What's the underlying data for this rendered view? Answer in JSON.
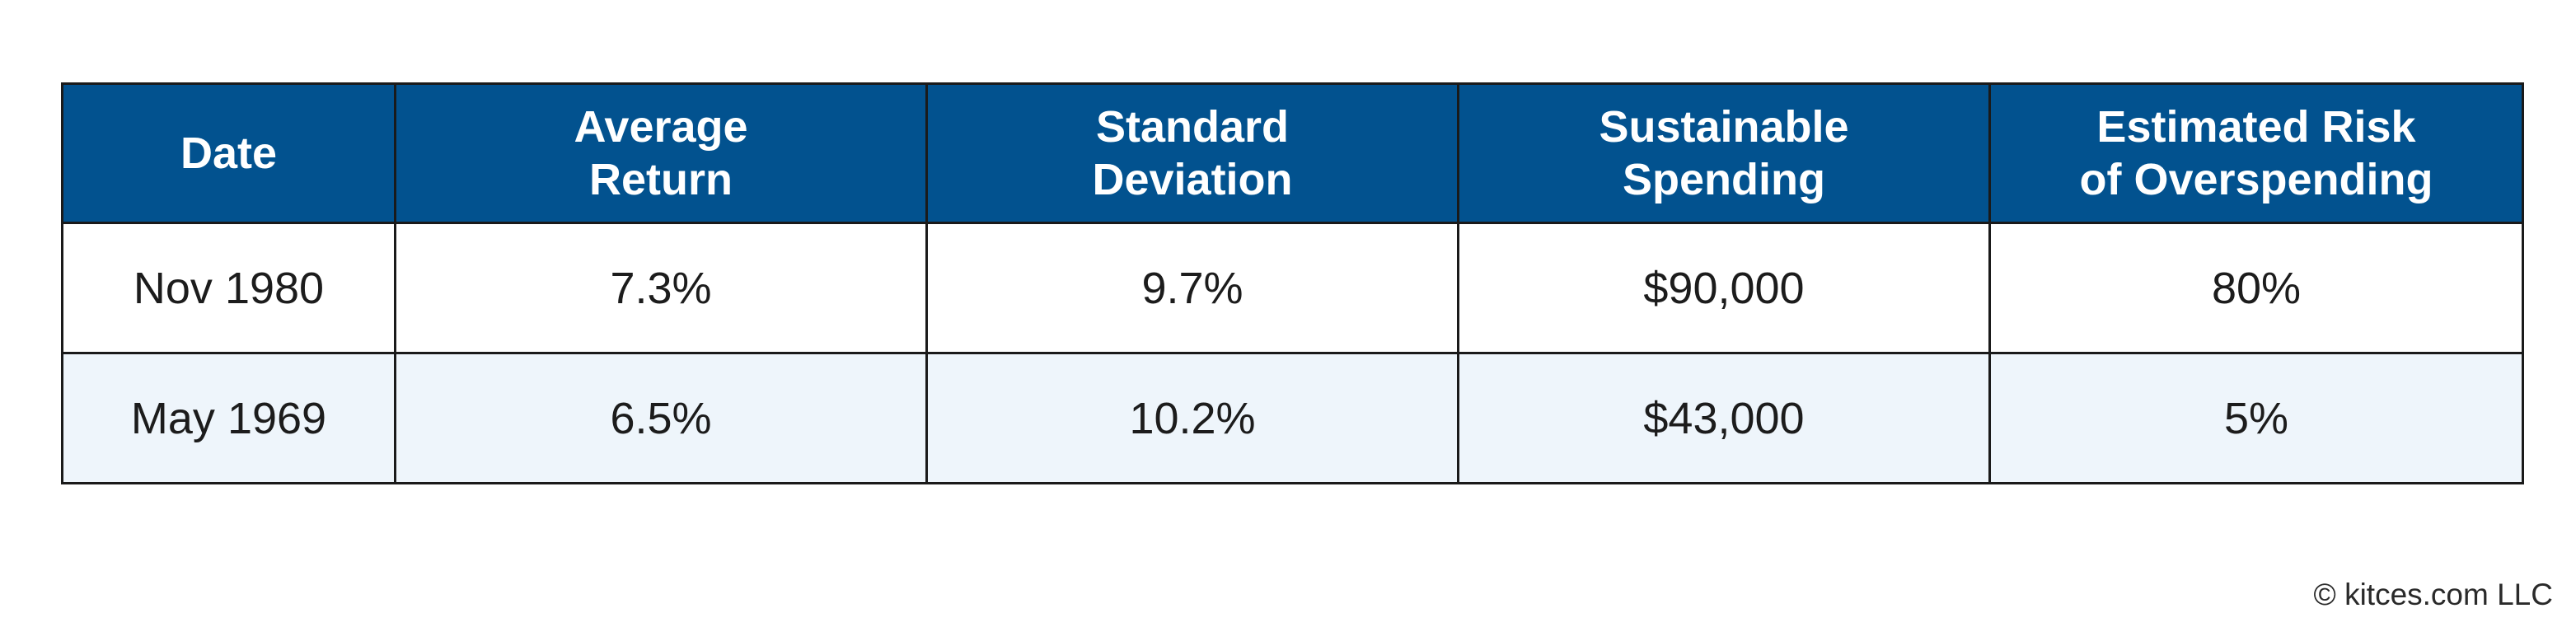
{
  "chart_data": {
    "type": "table",
    "columns": [
      [
        "Date"
      ],
      [
        "Average",
        "Return"
      ],
      [
        "Standard",
        "Deviation"
      ],
      [
        "Sustainable",
        "Spending"
      ],
      [
        "Estimated Risk",
        "of Overspending"
      ]
    ],
    "rows": [
      [
        "Nov 1980",
        "7.3%",
        "9.7%",
        "$90,000",
        "80%"
      ],
      [
        "May 1969",
        "6.5%",
        "10.2%",
        "$43,000",
        "5%"
      ]
    ]
  },
  "colors": {
    "header_bg": "#02528f",
    "header_text": "#ffffff",
    "alt_row_bg": "#eef5fb",
    "border": "#1a1a1a"
  },
  "footer": {
    "copyright": "© kitces.com LLC"
  }
}
